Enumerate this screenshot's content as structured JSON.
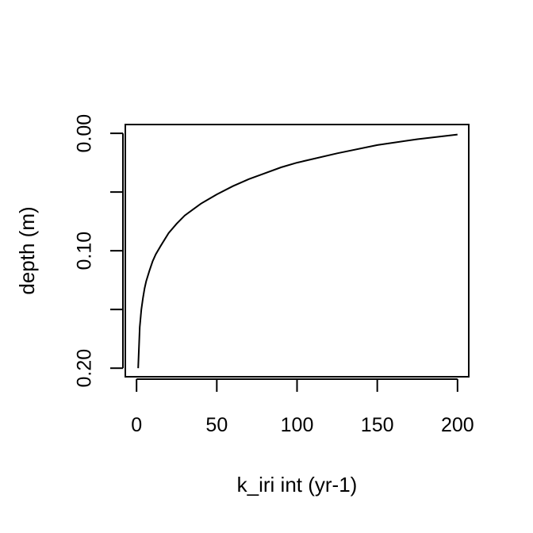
{
  "chart_data": {
    "type": "line",
    "title": "",
    "xlabel": "k_iri int (yr-1)",
    "ylabel": "depth (m)",
    "xlim": [
      -7,
      207
    ],
    "ylim": [
      0.2073,
      -0.0075
    ],
    "y_reversed": true,
    "grid": false,
    "x_ticks": [
      0,
      50,
      100,
      150,
      200
    ],
    "x_tick_labels": [
      "0",
      "50",
      "100",
      "150",
      "200"
    ],
    "y_ticks": [
      0.0,
      0.05,
      0.1,
      0.15,
      0.2
    ],
    "y_tick_labels": [
      "0.00",
      "",
      "0.10",
      "",
      "0.20"
    ],
    "series": [
      {
        "name": "",
        "color": "#000000",
        "x": [
          200,
          175,
          150,
          125,
          100,
          90,
          80,
          70,
          60,
          50,
          45,
          40,
          35,
          30,
          25,
          20,
          15,
          12,
          10,
          8,
          6,
          5,
          4,
          3,
          2,
          1
        ],
        "y": [
          0.001,
          0.005,
          0.01,
          0.017,
          0.025,
          0.029,
          0.034,
          0.039,
          0.045,
          0.052,
          0.056,
          0.06,
          0.065,
          0.07,
          0.077,
          0.085,
          0.096,
          0.103,
          0.109,
          0.117,
          0.126,
          0.132,
          0.14,
          0.15,
          0.165,
          0.2
        ]
      }
    ]
  }
}
